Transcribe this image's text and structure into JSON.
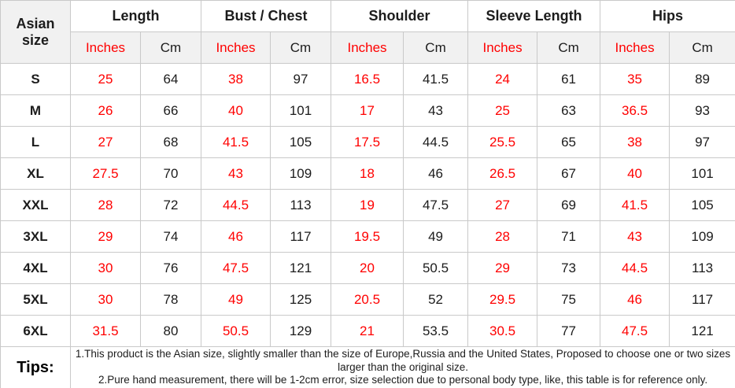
{
  "chart_data": {
    "type": "table",
    "corner_header": "Asian size",
    "groups": [
      {
        "label": "Length"
      },
      {
        "label": "Bust / Chest"
      },
      {
        "label": "Shoulder"
      },
      {
        "label": "Sleeve Length"
      },
      {
        "label": "Hips"
      }
    ],
    "unit_labels": [
      "Inches",
      "Cm"
    ],
    "rows": [
      {
        "size": "S",
        "values": [
          "25",
          "64",
          "38",
          "97",
          "16.5",
          "41.5",
          "24",
          "61",
          "35",
          "89"
        ]
      },
      {
        "size": "M",
        "values": [
          "26",
          "66",
          "40",
          "101",
          "17",
          "43",
          "25",
          "63",
          "36.5",
          "93"
        ]
      },
      {
        "size": "L",
        "values": [
          "27",
          "68",
          "41.5",
          "105",
          "17.5",
          "44.5",
          "25.5",
          "65",
          "38",
          "97"
        ]
      },
      {
        "size": "XL",
        "values": [
          "27.5",
          "70",
          "43",
          "109",
          "18",
          "46",
          "26.5",
          "67",
          "40",
          "101"
        ]
      },
      {
        "size": "XXL",
        "values": [
          "28",
          "72",
          "44.5",
          "113",
          "19",
          "47.5",
          "27",
          "69",
          "41.5",
          "105"
        ]
      },
      {
        "size": "3XL",
        "values": [
          "29",
          "74",
          "46",
          "117",
          "19.5",
          "49",
          "28",
          "71",
          "43",
          "109"
        ]
      },
      {
        "size": "4XL",
        "values": [
          "30",
          "76",
          "47.5",
          "121",
          "20",
          "50.5",
          "29",
          "73",
          "44.5",
          "113"
        ]
      },
      {
        "size": "5XL",
        "values": [
          "30",
          "78",
          "49",
          "125",
          "20.5",
          "52",
          "29.5",
          "75",
          "46",
          "117"
        ]
      },
      {
        "size": "6XL",
        "values": [
          "31.5",
          "80",
          "50.5",
          "129",
          "21",
          "53.5",
          "30.5",
          "77",
          "47.5",
          "121"
        ]
      }
    ],
    "tips_label": "Tips:",
    "tips_notes": [
      "1.This product is the Asian size, slightly smaller than the size of Europe,Russia and the United States, Proposed to choose one or two sizes larger than the original size.",
      "2.Pure hand measurement, there will be 1-2cm error, size selection due to personal body type, like, this table is for reference only."
    ]
  },
  "colors": {
    "accent_red": "#ff0000",
    "text_black": "#1c1c1c",
    "border_gray": "#c9c9c9",
    "subheader_bg": "#f1f1f1"
  }
}
